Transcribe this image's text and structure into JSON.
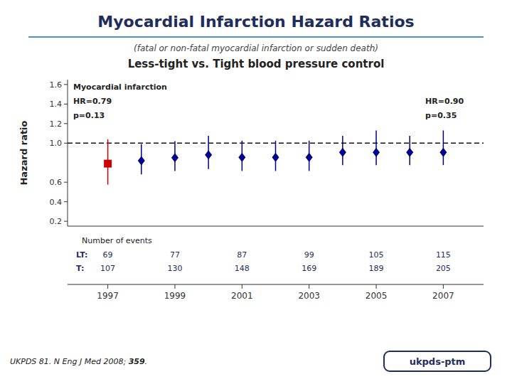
{
  "chart_data": {
    "type": "errorbar",
    "title": "Myocardial Infarction Hazard Ratios",
    "subtitle": "(fatal or non-fatal myocardial infarction or sudden death)",
    "comparison_label": "Less-tight vs. Tight blood pressure control",
    "ylabel": "Hazard ratio",
    "series": [
      {
        "color": "#CC0000",
        "marker": "square",
        "x": [
          1997
        ],
        "values": [
          0.79
        ],
        "low": [
          0.575
        ],
        "high": [
          1.04
        ]
      },
      {
        "color": "#00008B",
        "marker": "diamond",
        "x": [
          1998,
          1999,
          2000,
          2001,
          2002,
          2003,
          2004,
          2005,
          2006,
          2007
        ],
        "values": [
          0.82,
          0.85,
          0.88,
          0.855,
          0.855,
          0.855,
          0.905,
          0.905,
          0.905,
          0.905
        ],
        "low": [
          0.68,
          0.715,
          0.735,
          0.715,
          0.715,
          0.715,
          0.775,
          0.775,
          0.775,
          0.775
        ],
        "high": [
          0.99,
          1.02,
          1.075,
          1.025,
          1.025,
          1.025,
          1.075,
          1.13,
          1.075,
          1.13
        ]
      }
    ],
    "reference_line": {
      "value": 1.0,
      "line_style": "dashed"
    },
    "ylim": [
      0.15,
      1.65
    ],
    "yticks": [
      0.2,
      0.4,
      0.6,
      {
        "value": 1.0,
        "label": "1.0"
      },
      1.2,
      1.4,
      1.6
    ],
    "xlim": [
      1995.8,
      2008.2
    ],
    "xticks": [
      1997,
      1999,
      2001,
      2003,
      2005,
      2007
    ],
    "grid": false,
    "annotations": [
      {
        "text": "Myocardial infarction",
        "position": "left"
      },
      {
        "text": "HR=0.79",
        "position": "left"
      },
      {
        "text": "p=0.13",
        "position": "left"
      },
      {
        "text": "HR=0.90",
        "position": "right"
      },
      {
        "text": "p=0.35",
        "position": "right"
      }
    ],
    "events_table": {
      "title": "Number of events",
      "x": [
        1997,
        1999,
        2001,
        2003,
        2005,
        2007
      ],
      "rows": [
        {
          "label": "LT:",
          "values": [
            69,
            77,
            87,
            99,
            105,
            115
          ]
        },
        {
          "label": "T:",
          "values": [
            107,
            130,
            148,
            169,
            189,
            205
          ]
        }
      ]
    },
    "citation": [
      "UKPDS 81. N Eng J Med 2008; ",
      "359",
      "."
    ],
    "logo": "ukpds-ptm"
  }
}
